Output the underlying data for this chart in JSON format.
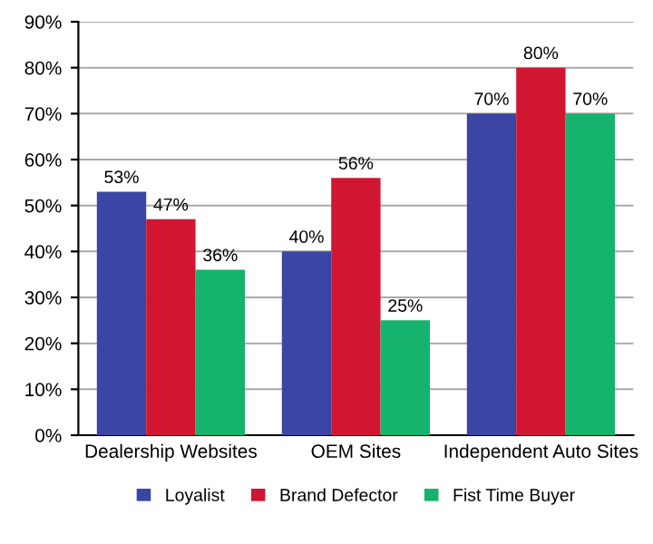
{
  "chart_data": {
    "type": "bar",
    "categories": [
      "Dealership Websites",
      "OEM Sites",
      "Independent Auto Sites"
    ],
    "series": [
      {
        "name": "Loyalist",
        "color": "#3b45a3",
        "values": [
          53,
          40,
          70
        ],
        "value_labels": [
          "53%",
          "40%",
          "70%"
        ]
      },
      {
        "name": "Brand Defector",
        "color": "#d11631",
        "values": [
          47,
          56,
          80
        ],
        "value_labels": [
          "47%",
          "56%",
          "80%"
        ]
      },
      {
        "name": "Fist Time Buyer",
        "color": "#16b36e",
        "values": [
          36,
          25,
          70
        ],
        "value_labels": [
          "36%",
          "25%",
          "70%"
        ]
      }
    ],
    "ylim": [
      0,
      90
    ],
    "yticks": [
      {
        "value": 0,
        "label": "0%"
      },
      {
        "value": 10,
        "label": "10%"
      },
      {
        "value": 20,
        "label": "20%"
      },
      {
        "value": 30,
        "label": "30%"
      },
      {
        "value": 40,
        "label": "40%"
      },
      {
        "value": 50,
        "label": "50%"
      },
      {
        "value": 60,
        "label": "60%"
      },
      {
        "value": 70,
        "label": "70%"
      },
      {
        "value": 80,
        "label": "80%"
      },
      {
        "value": 90,
        "label": "90%"
      }
    ],
    "grid": "y",
    "legend": "bottom"
  }
}
